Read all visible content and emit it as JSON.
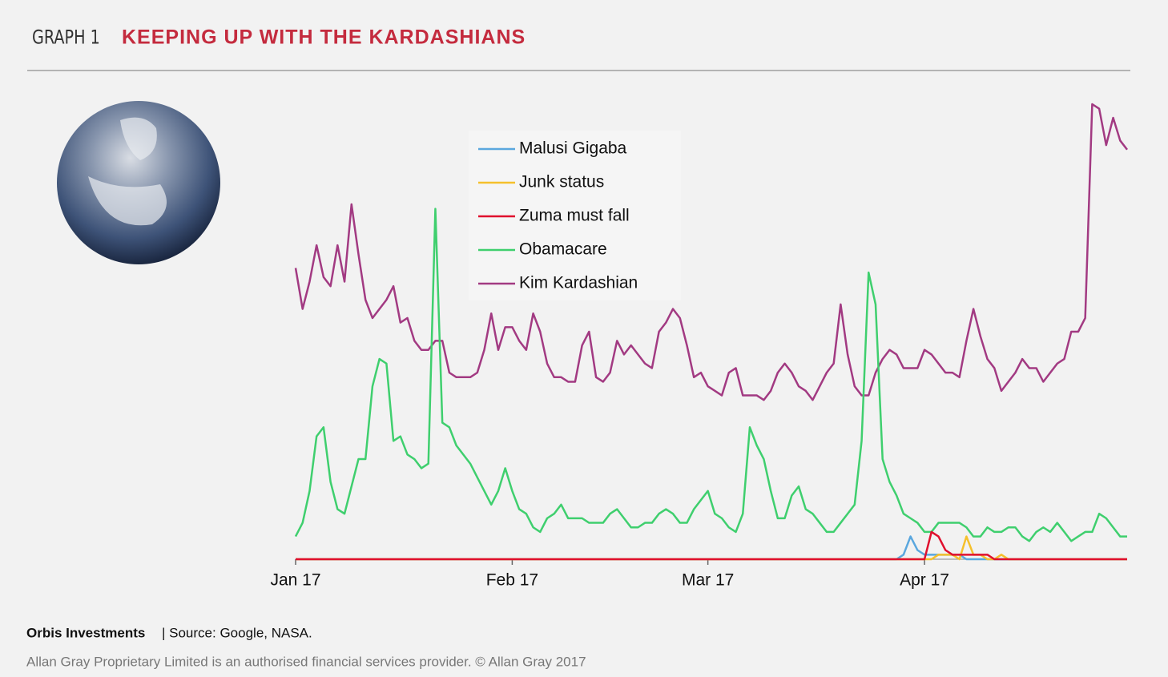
{
  "header": {
    "label": "GRAPH 1",
    "title": "KEEPING UP WITH THE KARDASHIANS"
  },
  "footer": {
    "source_org": "Orbis Investments",
    "source": "| Source: Google, NASA.",
    "disclaimer": "Allan Gray Proprietary Limited is an authorised financial services provider. © Allan Gray 2017"
  },
  "chart_data": {
    "type": "line",
    "x": [
      0,
      1,
      2,
      3,
      4,
      5,
      6,
      7,
      8,
      9,
      10,
      11,
      12,
      13,
      14,
      15,
      16,
      17,
      18,
      19,
      20,
      21,
      22,
      23,
      24,
      25,
      26,
      27,
      28,
      29,
      30,
      31,
      32,
      33,
      34,
      35,
      36,
      37,
      38,
      39,
      40,
      41,
      42,
      43,
      44,
      45,
      46,
      47,
      48,
      49,
      50,
      51,
      52,
      53,
      54,
      55,
      56,
      57,
      58,
      59,
      60,
      61,
      62,
      63,
      64,
      65,
      66,
      67,
      68,
      69,
      70,
      71,
      72,
      73,
      74,
      75,
      76,
      77,
      78,
      79,
      80,
      81,
      82,
      83,
      84,
      85,
      86,
      87,
      88,
      89,
      90,
      91,
      92,
      93,
      94,
      95,
      96,
      97,
      98,
      99,
      100,
      101,
      102,
      103,
      104,
      105,
      106,
      107,
      108,
      109,
      110,
      111,
      112,
      113,
      114,
      115,
      116,
      117,
      118,
      119
    ],
    "xlim": [
      0,
      119
    ],
    "xticks": [
      {
        "value": 0,
        "label": "Jan 17"
      },
      {
        "value": 31,
        "label": "Feb 17"
      },
      {
        "value": 59,
        "label": "Mar 17"
      },
      {
        "value": 90,
        "label": "Apr 17"
      }
    ],
    "ylim": [
      0,
      100
    ],
    "series": [
      {
        "name": "Malusi Gigaba",
        "color": "#5aa7de",
        "values": [
          0,
          0,
          0,
          0,
          0,
          0,
          0,
          0,
          0,
          0,
          0,
          0,
          0,
          0,
          0,
          0,
          0,
          0,
          0,
          0,
          0,
          0,
          0,
          0,
          0,
          0,
          0,
          0,
          0,
          0,
          0,
          0,
          0,
          0,
          0,
          0,
          0,
          0,
          0,
          0,
          0,
          0,
          0,
          0,
          0,
          0,
          0,
          0,
          0,
          0,
          0,
          0,
          0,
          0,
          0,
          0,
          0,
          0,
          0,
          0,
          0,
          0,
          0,
          0,
          0,
          0,
          0,
          0,
          0,
          0,
          0,
          0,
          0,
          0,
          0,
          0,
          0,
          0,
          0,
          0,
          0,
          0,
          0,
          0,
          0,
          0,
          0,
          1,
          5,
          2,
          1,
          1,
          1,
          1,
          1,
          1,
          0,
          0,
          0,
          0,
          0,
          0,
          0,
          0,
          0,
          0,
          0,
          0,
          0,
          0,
          0,
          0,
          0,
          0,
          0,
          0,
          0,
          0,
          0,
          0
        ]
      },
      {
        "name": "Junk status",
        "color": "#f5c02c",
        "values": [
          0,
          0,
          0,
          0,
          0,
          0,
          0,
          0,
          0,
          0,
          0,
          0,
          0,
          0,
          0,
          0,
          0,
          0,
          0,
          0,
          0,
          0,
          0,
          0,
          0,
          0,
          0,
          0,
          0,
          0,
          0,
          0,
          0,
          0,
          0,
          0,
          0,
          0,
          0,
          0,
          0,
          0,
          0,
          0,
          0,
          0,
          0,
          0,
          0,
          0,
          0,
          0,
          0,
          0,
          0,
          0,
          0,
          0,
          0,
          0,
          0,
          0,
          0,
          0,
          0,
          0,
          0,
          0,
          0,
          0,
          0,
          0,
          0,
          0,
          0,
          0,
          0,
          0,
          0,
          0,
          0,
          0,
          0,
          0,
          0,
          0,
          0,
          0,
          0,
          0,
          0,
          0,
          1,
          1,
          1,
          0,
          5,
          1,
          1,
          0,
          0,
          1,
          0,
          0,
          0,
          0,
          0,
          0,
          0,
          0,
          0,
          0,
          0,
          0,
          0,
          0,
          0,
          0,
          0,
          0
        ]
      },
      {
        "name": "Zuma must fall",
        "color": "#e0102e",
        "values": [
          0,
          0,
          0,
          0,
          0,
          0,
          0,
          0,
          0,
          0,
          0,
          0,
          0,
          0,
          0,
          0,
          0,
          0,
          0,
          0,
          0,
          0,
          0,
          0,
          0,
          0,
          0,
          0,
          0,
          0,
          0,
          0,
          0,
          0,
          0,
          0,
          0,
          0,
          0,
          0,
          0,
          0,
          0,
          0,
          0,
          0,
          0,
          0,
          0,
          0,
          0,
          0,
          0,
          0,
          0,
          0,
          0,
          0,
          0,
          0,
          0,
          0,
          0,
          0,
          0,
          0,
          0,
          0,
          0,
          0,
          0,
          0,
          0,
          0,
          0,
          0,
          0,
          0,
          0,
          0,
          0,
          0,
          0,
          0,
          0,
          0,
          0,
          0,
          0,
          0,
          0,
          6,
          5,
          2,
          1,
          1,
          1,
          1,
          1,
          1,
          0,
          0,
          0,
          0,
          0,
          0,
          0,
          0,
          0,
          0,
          0,
          0,
          0,
          0,
          0,
          0,
          0,
          0,
          0,
          0
        ]
      },
      {
        "name": "Obamacare",
        "color": "#3fcf6e",
        "values": [
          5,
          8,
          15,
          27,
          29,
          17,
          11,
          10,
          16,
          22,
          22,
          38,
          44,
          43,
          26,
          27,
          23,
          22,
          20,
          21,
          77,
          30,
          29,
          25,
          23,
          21,
          18,
          15,
          12,
          15,
          20,
          15,
          11,
          10,
          7,
          6,
          9,
          10,
          12,
          9,
          9,
          9,
          8,
          8,
          8,
          10,
          11,
          9,
          7,
          7,
          8,
          8,
          10,
          11,
          10,
          8,
          8,
          11,
          13,
          15,
          10,
          9,
          7,
          6,
          10,
          29,
          25,
          22,
          15,
          9,
          9,
          14,
          16,
          11,
          10,
          8,
          6,
          6,
          8,
          10,
          12,
          26,
          63,
          56,
          22,
          17,
          14,
          10,
          9,
          8,
          6,
          6,
          8,
          8,
          8,
          8,
          7,
          5,
          5,
          7,
          6,
          6,
          7,
          7,
          5,
          4,
          6,
          7,
          6,
          8,
          6,
          4,
          5,
          6,
          6,
          10,
          9,
          7,
          5,
          5
        ]
      },
      {
        "name": "Kim Kardashian",
        "color": "#a23a82",
        "values": [
          64,
          55,
          61,
          69,
          62,
          60,
          69,
          61,
          78,
          67,
          57,
          53,
          55,
          57,
          60,
          52,
          53,
          48,
          46,
          46,
          48,
          48,
          41,
          40,
          40,
          40,
          41,
          46,
          54,
          46,
          51,
          51,
          48,
          46,
          54,
          50,
          43,
          40,
          40,
          39,
          39,
          47,
          50,
          40,
          39,
          41,
          48,
          45,
          47,
          45,
          43,
          42,
          50,
          52,
          55,
          53,
          47,
          40,
          41,
          38,
          37,
          36,
          41,
          42,
          36,
          36,
          36,
          35,
          37,
          41,
          43,
          41,
          38,
          37,
          35,
          38,
          41,
          43,
          56,
          45,
          38,
          36,
          36,
          41,
          44,
          46,
          45,
          42,
          42,
          42,
          46,
          45,
          43,
          41,
          41,
          40,
          48,
          55,
          49,
          44,
          42,
          37,
          39,
          41,
          44,
          42,
          42,
          39,
          41,
          43,
          44,
          50,
          50,
          53,
          100,
          99,
          91,
          97,
          92,
          90
        ]
      }
    ]
  }
}
